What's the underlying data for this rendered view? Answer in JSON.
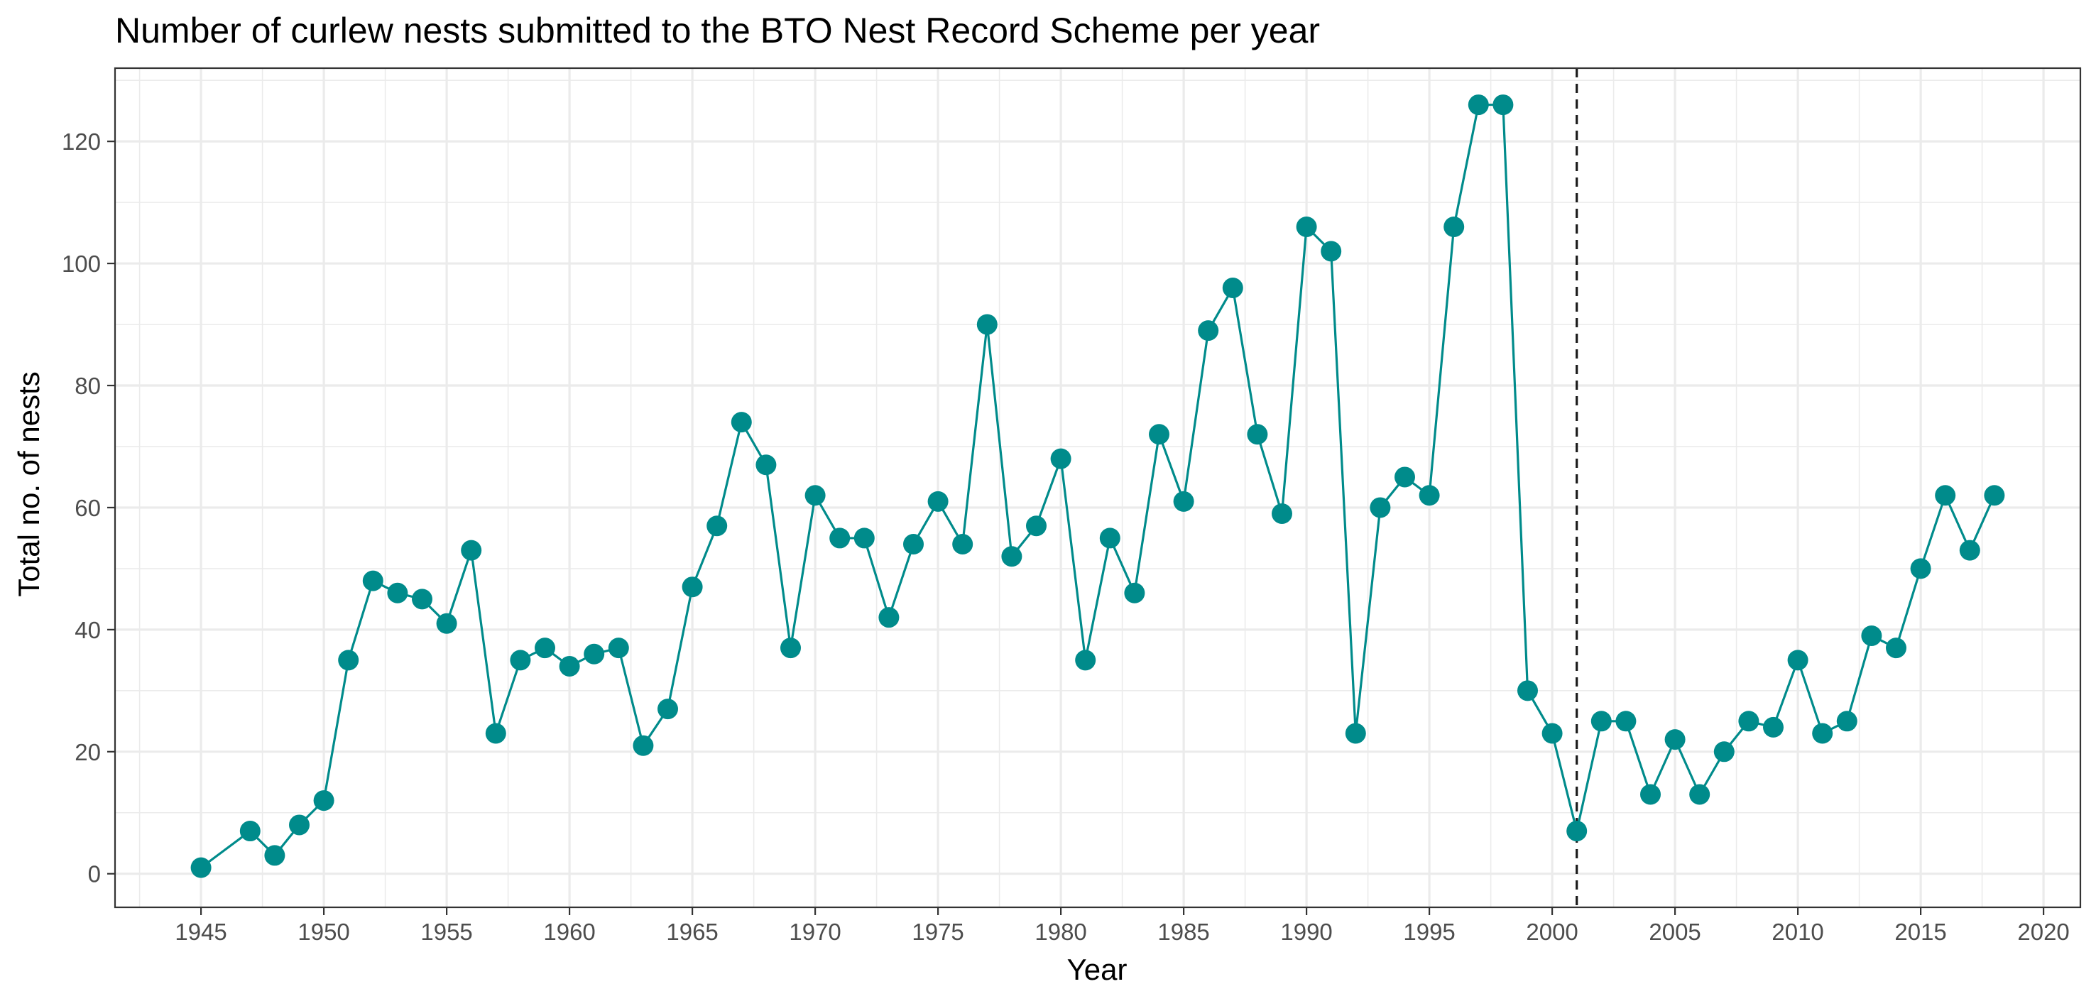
{
  "chart_data": {
    "type": "line",
    "title": "Number of curlew nests submitted to the BTO Nest Record Scheme per year",
    "xlabel": "Year",
    "ylabel": "Total no. of nests",
    "xlim": [
      1941.5,
      2021.5
    ],
    "ylim": [
      -5.5,
      132
    ],
    "x_ticks": [
      1945,
      1950,
      1955,
      1960,
      1965,
      1970,
      1975,
      1980,
      1985,
      1990,
      1995,
      2000,
      2005,
      2010,
      2015,
      2020
    ],
    "y_ticks": [
      0,
      20,
      40,
      60,
      80,
      100,
      120
    ],
    "grid": true,
    "legend": "none",
    "reference_line": {
      "x": 2001,
      "style": "dashed"
    },
    "colors": {
      "series": "#008b8b",
      "reference": "#1a1a1a",
      "grid": "#ebebeb",
      "panel_border": "#333333"
    },
    "series": [
      {
        "x": [
          1945,
          1947,
          1948,
          1949,
          1950,
          1951,
          1952,
          1953,
          1954,
          1955,
          1956,
          1957,
          1958,
          1959,
          1960,
          1961,
          1962,
          1963,
          1964,
          1965,
          1966,
          1967,
          1968,
          1969,
          1970,
          1971,
          1972,
          1973,
          1974,
          1975,
          1976,
          1977,
          1978,
          1979,
          1980,
          1981,
          1982,
          1983,
          1984,
          1985,
          1986,
          1987,
          1988,
          1989,
          1990,
          1991,
          1992,
          1993,
          1994,
          1995,
          1996,
          1997,
          1998,
          1999,
          2000,
          2001,
          2002,
          2003,
          2004,
          2005,
          2006,
          2007,
          2008,
          2009,
          2010,
          2011,
          2012,
          2013,
          2014,
          2015,
          2016,
          2017,
          2018
        ],
        "y": [
          1,
          7,
          3,
          8,
          12,
          35,
          48,
          46,
          45,
          41,
          53,
          23,
          35,
          37,
          34,
          36,
          37,
          21,
          27,
          47,
          57,
          74,
          67,
          37,
          62,
          55,
          55,
          42,
          54,
          61,
          54,
          90,
          52,
          57,
          68,
          35,
          55,
          46,
          72,
          61,
          89,
          96,
          72,
          59,
          106,
          102,
          23,
          60,
          65,
          62,
          106,
          126,
          126,
          30,
          23,
          7,
          25,
          25,
          13,
          22,
          13,
          20,
          25,
          24,
          35,
          23,
          25,
          39,
          37,
          50,
          62,
          53,
          62
        ]
      }
    ]
  }
}
